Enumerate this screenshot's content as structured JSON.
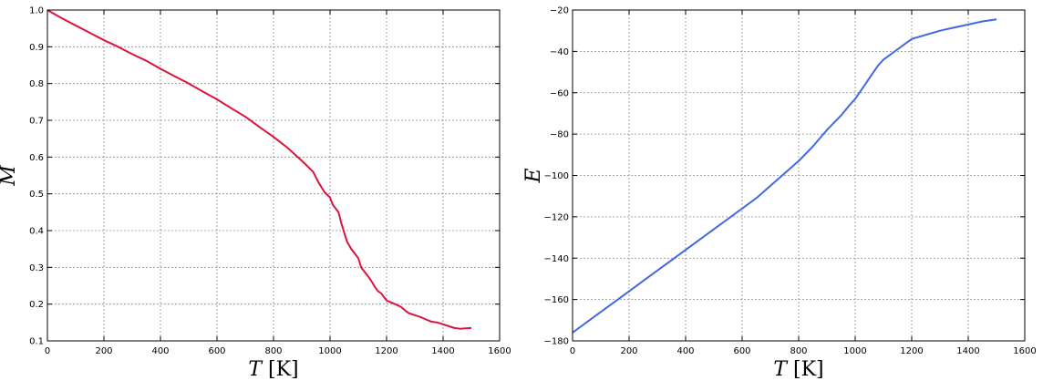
{
  "chart_data": [
    {
      "type": "line",
      "xlabel": "T",
      "xlabel_unit": "[K]",
      "ylabel": "M",
      "xlim": [
        0,
        1600
      ],
      "ylim": [
        0.1,
        1.0
      ],
      "xticks": [
        "0",
        "200",
        "400",
        "600",
        "800",
        "1000",
        "1200",
        "1400",
        "1600"
      ],
      "yticks": [
        "0.1",
        "0.2",
        "0.3",
        "0.4",
        "0.5",
        "0.6",
        "0.7",
        "0.8",
        "0.9",
        "1.0"
      ],
      "grid": true,
      "color": "#dc143c",
      "series": [
        {
          "x": [
            0,
            50,
            100,
            150,
            200,
            250,
            300,
            350,
            400,
            450,
            500,
            550,
            600,
            650,
            700,
            750,
            800,
            850,
            900,
            940,
            960,
            980,
            1000,
            1010,
            1030,
            1040,
            1050,
            1060,
            1075,
            1100,
            1110,
            1125,
            1140,
            1150,
            1160,
            1170,
            1180,
            1200,
            1215,
            1230,
            1250,
            1270,
            1280,
            1300,
            1320,
            1340,
            1360,
            1380,
            1400,
            1420,
            1440,
            1460,
            1480,
            1500
          ],
          "y": [
            1.0,
            0.978,
            0.958,
            0.938,
            0.918,
            0.9,
            0.88,
            0.862,
            0.84,
            0.82,
            0.8,
            0.778,
            0.757,
            0.733,
            0.71,
            0.682,
            0.655,
            0.625,
            0.59,
            0.56,
            0.53,
            0.505,
            0.49,
            0.47,
            0.45,
            0.42,
            0.395,
            0.37,
            0.35,
            0.325,
            0.3,
            0.285,
            0.27,
            0.258,
            0.245,
            0.235,
            0.23,
            0.21,
            0.205,
            0.2,
            0.193,
            0.18,
            0.175,
            0.17,
            0.165,
            0.158,
            0.152,
            0.15,
            0.145,
            0.14,
            0.135,
            0.133,
            0.134,
            0.135
          ]
        }
      ]
    },
    {
      "type": "line",
      "xlabel": "T",
      "xlabel_unit": "[K]",
      "ylabel": "E",
      "xlim": [
        0,
        1600
      ],
      "ylim": [
        -180,
        -20
      ],
      "xticks": [
        "0",
        "200",
        "400",
        "600",
        "800",
        "1000",
        "1200",
        "1400",
        "1600"
      ],
      "yticks": [
        "−180",
        "−160",
        "−140",
        "−120",
        "−100",
        "−80",
        "−60",
        "−40",
        "−20"
      ],
      "grid": true,
      "color": "#4169e1",
      "series": [
        {
          "x": [
            0,
            50,
            100,
            150,
            200,
            250,
            300,
            350,
            400,
            450,
            500,
            550,
            600,
            650,
            700,
            750,
            800,
            850,
            900,
            950,
            980,
            1000,
            1020,
            1040,
            1060,
            1080,
            1100,
            1120,
            1140,
            1160,
            1180,
            1200,
            1250,
            1300,
            1350,
            1400,
            1450,
            1500
          ],
          "y": [
            -176,
            -171,
            -166,
            -161,
            -156,
            -151,
            -146,
            -141,
            -136,
            -131,
            -126,
            -121,
            -116,
            -111,
            -105,
            -99,
            -93,
            -86,
            -78,
            -71,
            -66,
            -63,
            -59,
            -55,
            -51,
            -47,
            -44,
            -42,
            -40,
            -38,
            -36,
            -34,
            -32,
            -30,
            -28.5,
            -27,
            -25.5,
            -24.5
          ]
        }
      ]
    }
  ]
}
